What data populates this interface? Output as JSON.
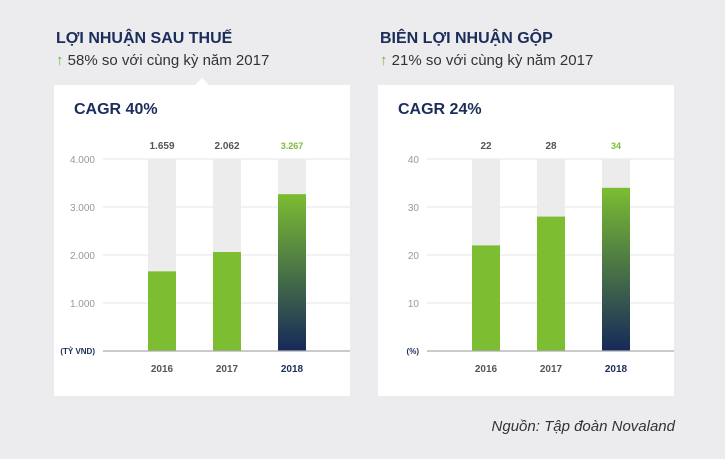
{
  "colors": {
    "bar": "#7cbd32",
    "highlight_top": "#7cbd32",
    "highlight_bottom": "#16295a",
    "track": "#ececed",
    "title": "#1b2d5a",
    "highlight_label": "#7cbd32"
  },
  "panels": [
    {
      "title": "LỢI NHUẬN SAU THUẾ",
      "arrow_icon": "arrow-up-icon",
      "subtitle": "58% so với cùng kỳ năm 2017"
    },
    {
      "title": "BIÊN LỢI NHUẬN GỘP",
      "arrow_icon": "arrow-up-icon",
      "subtitle": "21% so với cùng kỳ năm 2017"
    }
  ],
  "chart_data": [
    {
      "type": "bar",
      "title": "CAGR 40%",
      "ylabel": "(TỶ VND)",
      "categories": [
        "2016",
        "2017",
        "2018"
      ],
      "values": [
        1659,
        2062,
        3267
      ],
      "value_labels": [
        "1.659",
        "2.062",
        "3.267"
      ],
      "ylim": [
        0,
        4000
      ],
      "yticks": [
        1000,
        2000,
        3000,
        4000
      ],
      "ytick_labels": [
        "1.000",
        "2.000",
        "3.000",
        "4.000"
      ],
      "grid": true,
      "highlight": "2018"
    },
    {
      "type": "bar",
      "title": "CAGR 24%",
      "ylabel": "(%)",
      "categories": [
        "2016",
        "2017",
        "2018"
      ],
      "values": [
        22,
        28,
        34
      ],
      "value_labels": [
        "22",
        "28",
        "34"
      ],
      "ylim": [
        0,
        40
      ],
      "yticks": [
        10,
        20,
        30,
        40
      ],
      "ytick_labels": [
        "10",
        "20",
        "30",
        "40"
      ],
      "grid": true,
      "highlight": "2018"
    }
  ],
  "source": "Nguồn: Tập đoàn Novaland"
}
